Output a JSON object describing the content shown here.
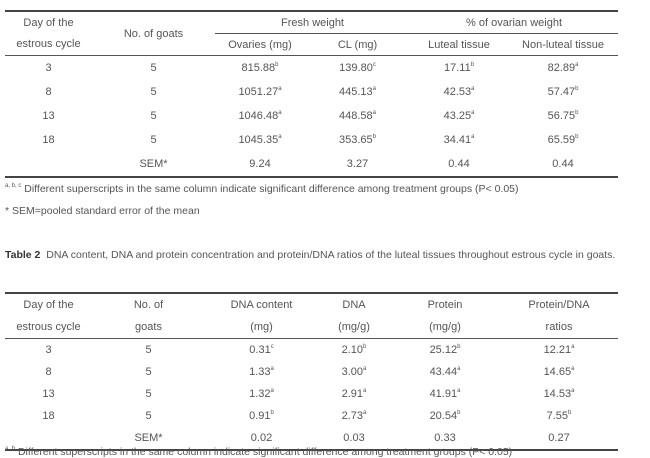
{
  "table1": {
    "headers": {
      "day": "Day of the estrous cycle",
      "day_line1": "Day of the",
      "day_line2": "estrous cycle",
      "goats": "No. of goats",
      "fresh_weight": "Fresh weight",
      "ovarian_pct": "% of ovarian weight",
      "ovaries": "Ovaries (mg)",
      "cl": "CL (mg)",
      "luteal": "Luteal tissue",
      "nonluteal": "Non-luteal tissue"
    },
    "rows": [
      {
        "day": "3",
        "goats": "5",
        "ovaries": "815.88",
        "ovaries_sup": "b",
        "cl": "139.80",
        "cl_sup": "c",
        "luteal": "17.11",
        "luteal_sup": "b",
        "nonluteal": "82.89",
        "nonluteal_sup": "a"
      },
      {
        "day": "8",
        "goats": "5",
        "ovaries": "1051.27",
        "ovaries_sup": "a",
        "cl": "445.13",
        "cl_sup": "a",
        "luteal": "42.53",
        "luteal_sup": "a",
        "nonluteal": "57.47",
        "nonluteal_sup": "b"
      },
      {
        "day": "13",
        "goats": "5",
        "ovaries": "1046.48",
        "ovaries_sup": "a",
        "cl": "448.58",
        "cl_sup": "a",
        "luteal": "43.25",
        "luteal_sup": "a",
        "nonluteal": "56.75",
        "nonluteal_sup": "b"
      },
      {
        "day": "18",
        "goats": "5",
        "ovaries": "1045.35",
        "ovaries_sup": "a",
        "cl": "353.65",
        "cl_sup": "b",
        "luteal": "34.41",
        "luteal_sup": "a",
        "nonluteal": "65.59",
        "nonluteal_sup": "b"
      }
    ],
    "sem": {
      "label": "SEM*",
      "ovaries": "9.24",
      "cl": "3.27",
      "luteal": "0.44",
      "nonluteal": "0.44"
    },
    "footnote1_sup": "a, b, c",
    "footnote1": "Different superscripts in the same column indicate significant difference among treatment groups (P< 0.05)",
    "footnote2": "* SEM=pooled standard error of the mean"
  },
  "table2": {
    "caption_label": "Table 2",
    "caption_text": "DNA content, DNA and protein concentration and protein/DNA ratios of the luteal tissues throughout estrous cycle in goats.",
    "headers": {
      "day_line1": "Day of the",
      "day_line2": "estrous cycle",
      "goats_line1": "No. of",
      "goats_line2": "goats",
      "dnac_line1": "DNA content",
      "dnac_line2": "(mg)",
      "dna_line1": "DNA",
      "dna_line2": "(mg/g)",
      "protein_line1": "Protein",
      "protein_line2": "(mg/g)",
      "ratio_line1": "Protein/DNA",
      "ratio_line2": "ratios"
    },
    "rows": [
      {
        "day": "3",
        "goats": "5",
        "dnac": "0.31",
        "dnac_sup": "c",
        "dna": "2.10",
        "dna_sup": "b",
        "protein": "25.12",
        "protein_sup": "b",
        "ratio": "12.21",
        "ratio_sup": "a"
      },
      {
        "day": "8",
        "goats": "5",
        "dnac": "1.33",
        "dnac_sup": "a",
        "dna": "3.00",
        "dna_sup": "a",
        "protein": "43.44",
        "protein_sup": "a",
        "ratio": "14.65",
        "ratio_sup": "a"
      },
      {
        "day": "13",
        "goats": "5",
        "dnac": "1.32",
        "dnac_sup": "a",
        "dna": "2.91",
        "dna_sup": "a",
        "protein": "41.91",
        "protein_sup": "a",
        "ratio": "14.53",
        "ratio_sup": "a"
      },
      {
        "day": "18",
        "goats": "5",
        "dnac": "0.91",
        "dnac_sup": "b",
        "dna": "2.73",
        "dna_sup": "a",
        "protein": "20.54",
        "protein_sup": "b",
        "ratio": "7.55",
        "ratio_sup": "b"
      }
    ],
    "sem": {
      "label": "SEM*",
      "dnac": "0.02",
      "dna": "0.03",
      "protein": "0.33",
      "ratio": "0.27"
    },
    "footnote1_sup": "a, b",
    "footnote1": "Different superscripts in the same column indicate significant difference among treatment groups (P< 0.05)"
  }
}
